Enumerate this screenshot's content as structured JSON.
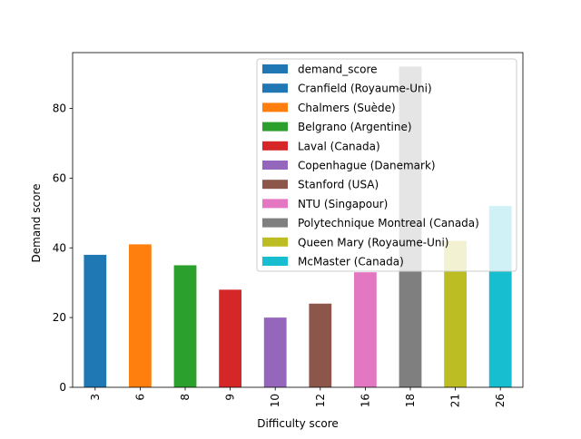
{
  "chart_data": {
    "type": "bar",
    "xlabel": "Difficulty score",
    "ylabel": "Demand score",
    "ylim": [
      0,
      96
    ],
    "yticks": [
      0,
      20,
      40,
      60,
      80
    ],
    "grid": false,
    "legend_position": "top-right",
    "categories": [
      "3",
      "6",
      "8",
      "9",
      "10",
      "12",
      "16",
      "18",
      "21",
      "26"
    ],
    "values": [
      38,
      41,
      35,
      28,
      20,
      24,
      33,
      92,
      42,
      52
    ],
    "bar_colors": [
      "#1f77b4",
      "#ff7f0e",
      "#2ca02c",
      "#d62728",
      "#9467bd",
      "#8c564b",
      "#e377c2",
      "#7f7f7f",
      "#bcbd22",
      "#17becf"
    ],
    "legend": [
      {
        "label": "demand_score",
        "color": "#1f77b4"
      },
      {
        "label": "Cranfield (Royaume-Uni)",
        "color": "#1f77b4"
      },
      {
        "label": "Chalmers (Suède)",
        "color": "#ff7f0e"
      },
      {
        "label": "Belgrano (Argentine)",
        "color": "#2ca02c"
      },
      {
        "label": "Laval (Canada)",
        "color": "#d62728"
      },
      {
        "label": "Copenhague (Danemark)",
        "color": "#9467bd"
      },
      {
        "label": "Stanford (USA)",
        "color": "#8c564b"
      },
      {
        "label": "NTU (Singapour)",
        "color": "#e377c2"
      },
      {
        "label": "Polytechnique Montreal (Canada)",
        "color": "#7f7f7f"
      },
      {
        "label": "Queen Mary (Royaume-Uni)",
        "color": "#bcbd22"
      },
      {
        "label": "McMaster (Canada)",
        "color": "#17becf"
      }
    ]
  }
}
